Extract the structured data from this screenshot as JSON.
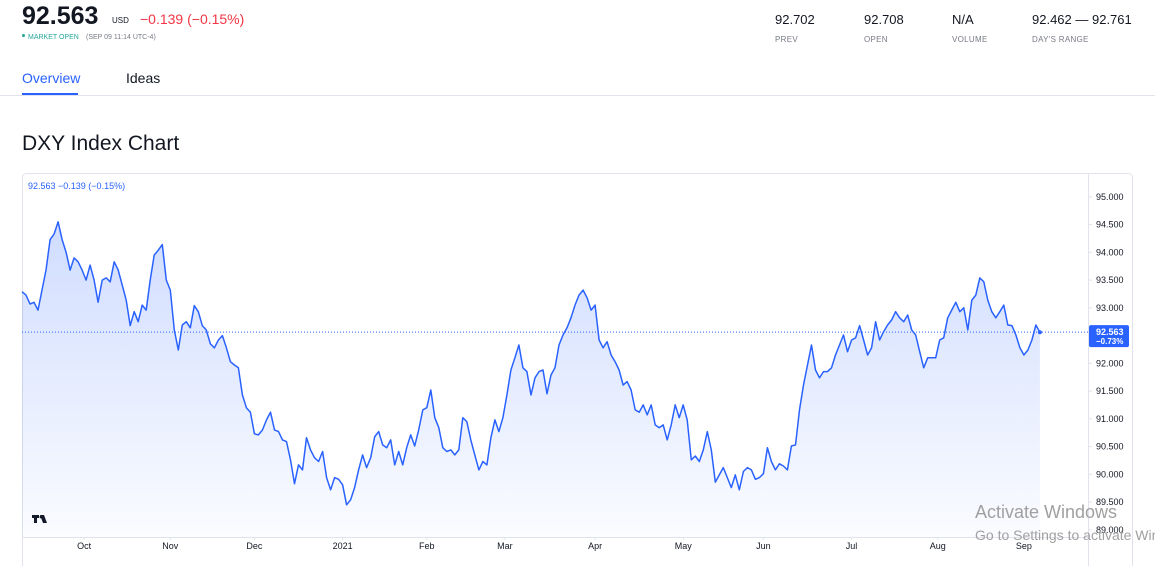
{
  "header": {
    "price": "92.563",
    "currency": "USD",
    "change": "−0.139 (−0.15%)",
    "status": "MARKET OPEN",
    "time": "(SEP 09 11:14 UTC-4)",
    "stats": [
      {
        "value": "92.702",
        "label": "PREV"
      },
      {
        "value": "92.708",
        "label": "OPEN"
      },
      {
        "value": "N/A",
        "label": "VOLUME"
      },
      {
        "value": "92.462 — 92.761",
        "label": "DAY'S RANGE"
      }
    ]
  },
  "tabs": [
    "Overview",
    "Ideas"
  ],
  "section_title": "DXY Index Chart",
  "watermark": [
    "Activate Windows",
    "Go to Settings to activate Windows."
  ],
  "chart_data": {
    "type": "line",
    "legend": "92.563 −0.139 (−0.15%)",
    "color": "#2962ff",
    "last_price": 92.563,
    "last_change": "−0.73%",
    "values": [
      93.29,
      93.23,
      93.07,
      93.1,
      92.96,
      93.32,
      93.68,
      94.23,
      94.33,
      94.55,
      94.23,
      94.0,
      93.68,
      93.9,
      93.83,
      93.68,
      93.5,
      93.77,
      93.5,
      93.1,
      93.5,
      93.54,
      93.47,
      93.83,
      93.68,
      93.41,
      93.14,
      92.68,
      92.93,
      92.75,
      93.05,
      92.96,
      93.5,
      93.95,
      94.04,
      94.14,
      93.5,
      93.32,
      92.6,
      92.24,
      92.69,
      92.75,
      92.64,
      93.04,
      92.93,
      92.68,
      92.6,
      92.35,
      92.28,
      92.42,
      92.5,
      92.28,
      92.03,
      91.97,
      91.92,
      91.43,
      91.2,
      91.12,
      90.73,
      90.71,
      90.8,
      90.98,
      91.12,
      90.8,
      90.77,
      90.62,
      90.59,
      90.26,
      89.83,
      90.17,
      90.08,
      90.66,
      90.44,
      90.3,
      90.23,
      90.41,
      89.94,
      89.72,
      89.94,
      89.91,
      89.81,
      89.45,
      89.54,
      89.76,
      90.08,
      90.35,
      90.12,
      90.3,
      90.68,
      90.77,
      90.53,
      90.48,
      90.62,
      90.17,
      90.41,
      90.17,
      90.48,
      90.71,
      90.51,
      90.8,
      91.16,
      91.2,
      91.52,
      91.02,
      90.84,
      90.48,
      90.41,
      90.44,
      90.35,
      90.44,
      91.02,
      90.95,
      90.62,
      90.35,
      90.08,
      90.23,
      90.17,
      90.66,
      90.98,
      90.77,
      91.02,
      91.43,
      91.88,
      92.1,
      92.33,
      91.92,
      91.85,
      91.43,
      91.74,
      91.85,
      91.88,
      91.45,
      91.79,
      91.92,
      92.33,
      92.51,
      92.64,
      92.82,
      93.05,
      93.23,
      93.32,
      93.18,
      92.96,
      93.05,
      92.42,
      92.28,
      92.39,
      92.15,
      92.03,
      91.88,
      91.61,
      91.67,
      91.52,
      91.16,
      91.12,
      91.25,
      91.07,
      91.25,
      90.89,
      90.84,
      90.89,
      90.62,
      90.89,
      91.25,
      91.02,
      91.25,
      90.98,
      90.26,
      90.33,
      90.23,
      90.44,
      90.77,
      90.44,
      89.86,
      89.99,
      90.12,
      89.94,
      89.76,
      89.99,
      89.72,
      90.05,
      90.12,
      90.08,
      89.91,
      89.94,
      90.01,
      90.48,
      90.23,
      90.08,
      90.19,
      90.15,
      90.08,
      90.51,
      90.53,
      91.16,
      91.61,
      91.97,
      92.33,
      91.88,
      91.74,
      91.85,
      91.85,
      91.92,
      92.15,
      92.33,
      92.51,
      92.21,
      92.42,
      92.46,
      92.68,
      92.42,
      92.15,
      92.28,
      92.75,
      92.42,
      92.57,
      92.69,
      92.78,
      92.93,
      92.82,
      92.75,
      92.87,
      92.6,
      92.51,
      92.21,
      91.92,
      92.1,
      92.1,
      92.1,
      92.42,
      92.46,
      92.82,
      92.96,
      93.1,
      92.93,
      93.0,
      92.6,
      93.14,
      93.23,
      93.54,
      93.47,
      93.14,
      92.93,
      92.82,
      92.93,
      93.05,
      92.69,
      92.68,
      92.51,
      92.28,
      92.15,
      92.24,
      92.42,
      92.69,
      92.56
    ],
    "xlim": [
      0,
      266
    ],
    "xticks": [
      {
        "value": 15.5,
        "label": "Oct"
      },
      {
        "value": 37,
        "label": "Nov"
      },
      {
        "value": 58,
        "label": "Dec"
      },
      {
        "value": 80,
        "label": "2021"
      },
      {
        "value": 101,
        "label": "Feb"
      },
      {
        "value": 120.5,
        "label": "Mar"
      },
      {
        "value": 143,
        "label": "Apr"
      },
      {
        "value": 165,
        "label": "May"
      },
      {
        "value": 185,
        "label": "Jun"
      },
      {
        "value": 207,
        "label": "Jul"
      },
      {
        "value": 228.5,
        "label": "Aug"
      },
      {
        "value": 250,
        "label": "Sep"
      }
    ],
    "ylim": [
      88.87,
      95.43
    ],
    "yticks": [
      {
        "value": 89,
        "label": "89.000"
      },
      {
        "value": 89.5,
        "label": "89.500"
      },
      {
        "value": 90,
        "label": "90.000"
      },
      {
        "value": 90.5,
        "label": "90.500"
      },
      {
        "value": 91,
        "label": "91.000"
      },
      {
        "value": 91.5,
        "label": "91.500"
      },
      {
        "value": 92,
        "label": "92.000"
      },
      {
        "value": 92.5,
        "label": "92.500"
      },
      {
        "value": 93,
        "label": "93.000"
      },
      {
        "value": 93.5,
        "label": "93.500"
      },
      {
        "value": 94,
        "label": "94.000"
      },
      {
        "value": 94.5,
        "label": "94.500"
      },
      {
        "value": 95,
        "label": "95.000"
      }
    ],
    "grid": false
  }
}
